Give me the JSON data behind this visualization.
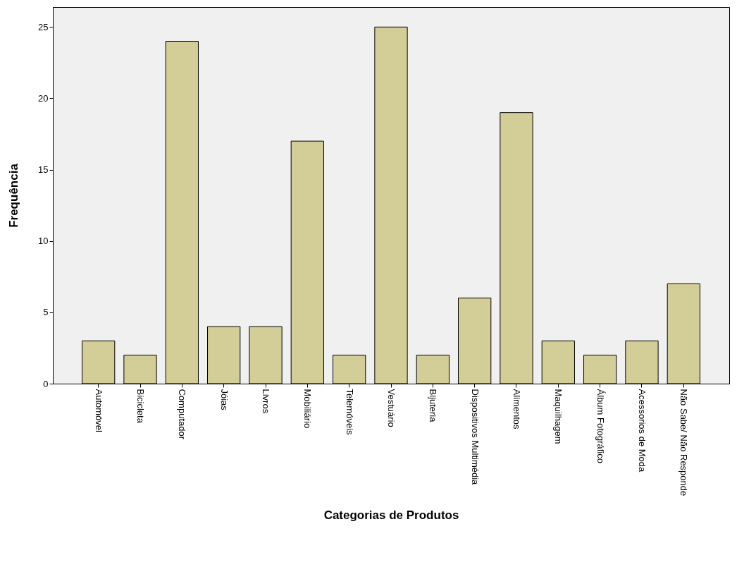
{
  "chart_data": {
    "type": "bar",
    "xlabel": "Categorias de Produtos",
    "ylabel": "Frequência",
    "categories": [
      "Automóvel",
      "Bicicleta",
      "Computador",
      "Jóias",
      "Livros",
      "Mobiliário",
      "Telemóveis",
      "Vestuário",
      "Bijuteria",
      "Dispositivos Multimédia",
      "Alimentos",
      "Maquilhagem",
      "Álbum Fotográfico",
      "Acessorios de Moda",
      "Não Sabe/ Não Responde"
    ],
    "values": [
      3,
      2,
      24,
      4,
      4,
      17,
      2,
      25,
      2,
      6,
      19,
      3,
      2,
      3,
      7
    ],
    "color": "#d3ce97",
    "ylim": [
      0,
      26.4
    ],
    "yticks": [
      0,
      5,
      10,
      15,
      20,
      25
    ],
    "grid": false
  }
}
